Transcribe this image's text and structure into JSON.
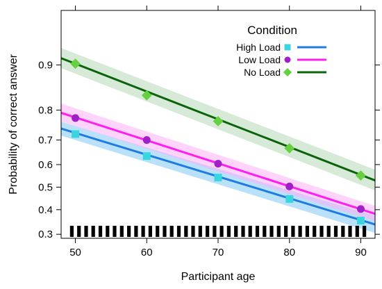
{
  "chart_data": {
    "type": "line",
    "xlabel": "Participant age",
    "ylabel": "Probability of correct answer",
    "xlim": [
      48,
      92
    ],
    "ylim": [
      0.285,
      0.96
    ],
    "x_ticks": [
      50,
      60,
      70,
      80,
      90
    ],
    "y_ticks": [
      0.3,
      0.4,
      0.5,
      0.6,
      0.7,
      0.8,
      0.9
    ],
    "y_tick_labels": [
      "0.3",
      "0.4",
      "0.5",
      "0.6",
      "0.7",
      "0.8",
      "0.9"
    ],
    "scale": "logit",
    "grid": false,
    "legend": {
      "title": "Condition",
      "position": "top-right"
    },
    "series": [
      {
        "name": "High Load",
        "marker": "square",
        "line_color": "#1e7ce0",
        "marker_color": "#3ad6e0",
        "band_color": "#7fc8f5",
        "x": [
          50,
          60,
          70,
          80,
          90
        ],
        "y": [
          0.722,
          0.636,
          0.543,
          0.447,
          0.354
        ],
        "fit_start": 0.726,
        "fit_end": 0.356,
        "band_lower_start": 0.7,
        "band_upper_start": 0.75,
        "band_lower_end": 0.322,
        "band_upper_end": 0.392
      },
      {
        "name": "Low Load",
        "marker": "circle",
        "line_color": "#ff1ef0",
        "marker_color": "#a020c8",
        "band_color": "#ffb0f5",
        "x": [
          50,
          60,
          70,
          80,
          90
        ],
        "y": [
          0.776,
          0.7,
          0.604,
          0.503,
          0.403
        ],
        "fit_start": 0.778,
        "fit_end": 0.402,
        "band_lower_start": 0.75,
        "band_upper_start": 0.805,
        "band_lower_end": 0.37,
        "band_upper_end": 0.437
      },
      {
        "name": "No Load",
        "marker": "diamond",
        "line_color": "#0a640a",
        "marker_color": "#66d040",
        "band_color": "#b7d9b7",
        "x": [
          50,
          60,
          70,
          80,
          90
        ],
        "y": [
          0.902,
          0.839,
          0.766,
          0.668,
          0.552
        ],
        "fit_start": 0.902,
        "fit_end": 0.555,
        "band_lower_start": 0.885,
        "band_upper_start": 0.917,
        "band_lower_end": 0.51,
        "band_upper_end": 0.602
      }
    ],
    "rug": {
      "color": "#000000",
      "x_start": 49.5,
      "x_end": 90.5,
      "count": 42
    }
  }
}
